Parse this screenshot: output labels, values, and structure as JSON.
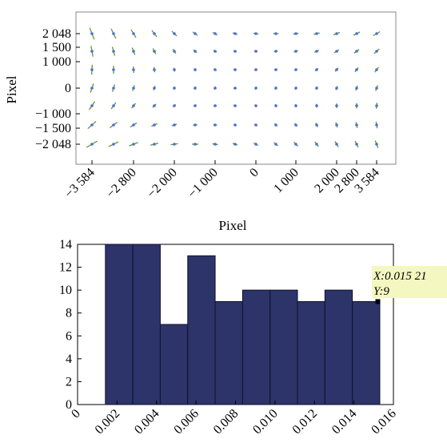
{
  "colors": {
    "bar_fill": "#2d3469",
    "bar_edge": "#0f1230",
    "arrow": "#5a9a2a",
    "marker": "#4f6fd0",
    "datatip_bg": "#f4f8c0"
  },
  "chart_data": [
    {
      "type": "quiver",
      "xlabel": "Pixel",
      "ylabel": "Pixel",
      "grid": false,
      "xtick_labels": [
        "−3 584",
        "−2 800",
        "−2 000",
        "−1 000",
        "0",
        "1 000",
        "2 000",
        "2 800",
        "3 584"
      ],
      "ytick_labels": [
        "2 048",
        "1 500",
        "1 000",
        "0",
        "−1 000",
        "−1 500",
        "−2 048"
      ],
      "x_grid_points": [
        -3584,
        -2800,
        -2000,
        -1000,
        0,
        1000,
        2000,
        2800,
        3584
      ],
      "y_grid_points": [
        2048,
        1500,
        1000,
        0,
        -1000,
        -1500,
        -2048
      ],
      "field_note": "distortion vectors: rotation-like field, larger at left"
    },
    {
      "type": "bar",
      "xlim": [
        0,
        0.016
      ],
      "ylim": [
        0,
        14
      ],
      "xtick_labels": [
        "0",
        "0.002",
        "0.004",
        "0.006",
        "0.008",
        "0.010",
        "0.012",
        "0.014",
        "0.016"
      ],
      "ytick_labels": [
        "0",
        "2",
        "4",
        "6",
        "8",
        "10",
        "12",
        "14"
      ],
      "bin_edges": [
        0.00141,
        0.0028,
        0.00419,
        0.00558,
        0.00697,
        0.00836,
        0.00975,
        0.01114,
        0.01253,
        0.01392,
        0.01531
      ],
      "values": [
        14,
        14,
        7,
        13,
        9,
        10,
        10,
        9,
        10,
        9
      ],
      "datatip": {
        "x_text": "X:0.015 21",
        "y_text": "Y:9",
        "x": 0.01521,
        "y": 9
      }
    }
  ]
}
